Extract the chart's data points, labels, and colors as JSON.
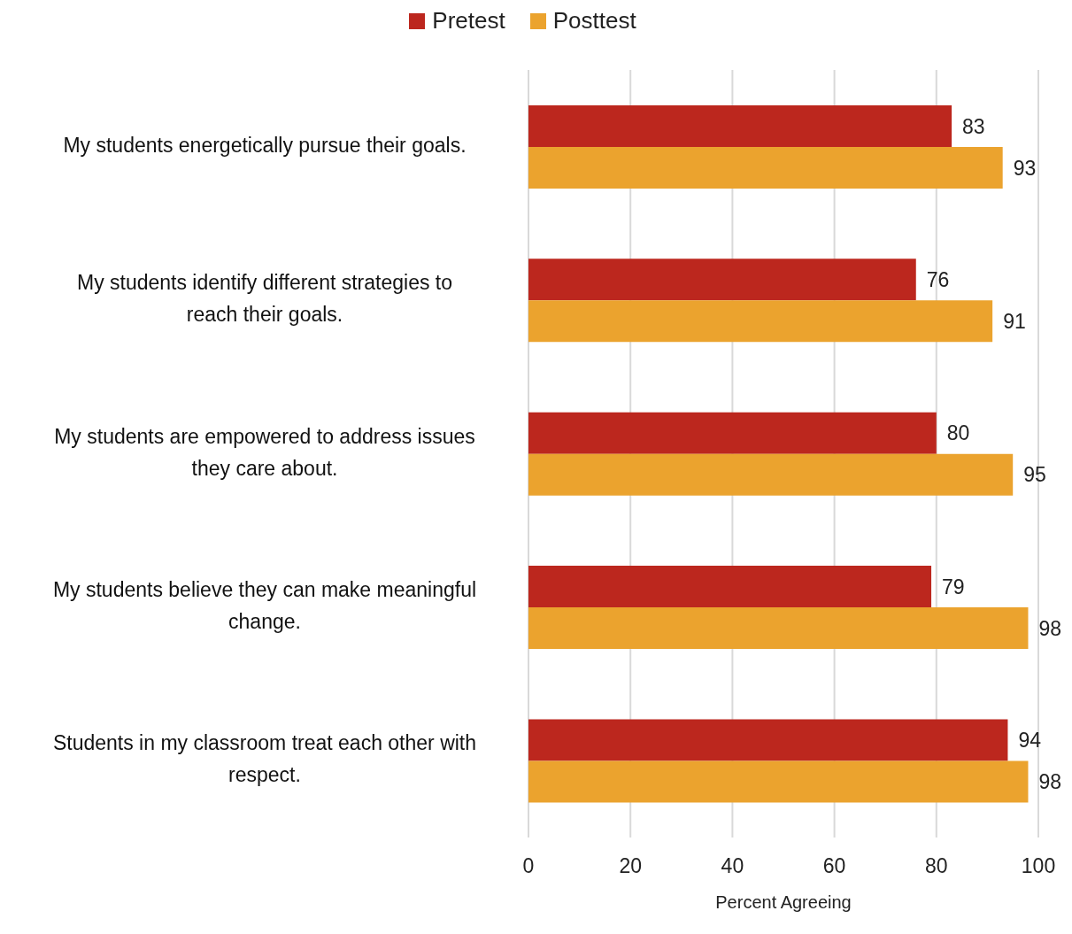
{
  "chart_data": {
    "type": "bar",
    "orientation": "horizontal",
    "xlabel": "Percent Agreeing",
    "categories": [
      "My students energetically pursue their goals.",
      "My students identify different strategies to reach their goals.",
      "My students are empowered to address issues they care about.",
      "My students believe they can make meaningful change.",
      "Students in my classroom treat each other with respect."
    ],
    "series": [
      {
        "name": "Pretest",
        "color": "#bc271e",
        "values": [
          83,
          76,
          80,
          79,
          94
        ]
      },
      {
        "name": "Posttest",
        "color": "#eba32e",
        "values": [
          93,
          91,
          95,
          98,
          98
        ]
      }
    ],
    "xlim": [
      0,
      100
    ],
    "xticks": [
      0,
      20,
      40,
      60,
      80,
      100
    ],
    "grid": "x",
    "legend": "top",
    "data_labels": true
  }
}
